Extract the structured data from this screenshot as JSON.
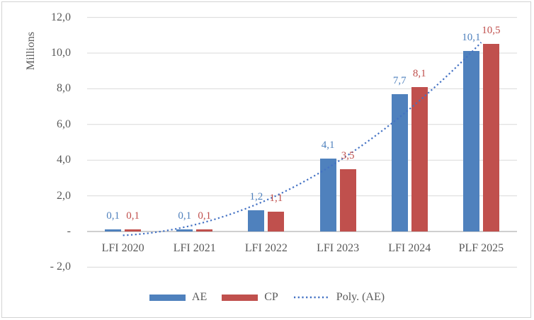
{
  "frame": {
    "background": "#FFFFFF",
    "border_color": "#D3D3D3"
  },
  "chart_data": {
    "type": "bar",
    "title": "",
    "categories": [
      "LFI 2020",
      "LFI 2021",
      "LFI 2022",
      "LFI 2023",
      "LFI 2024",
      "PLF 2025"
    ],
    "series": [
      {
        "name": "AE",
        "color": "#4F81BD",
        "values": [
          0.1,
          0.1,
          1.2,
          4.1,
          7.7,
          10.1
        ],
        "data_labels": [
          "0,1",
          "0,1",
          "1,2",
          "4,1",
          "7,7",
          "10,1"
        ]
      },
      {
        "name": "CP",
        "color": "#C0504D",
        "values": [
          0.1,
          0.1,
          1.1,
          3.5,
          8.1,
          10.5
        ],
        "data_labels": [
          "0,1",
          "0,1",
          "1,1",
          "3,5",
          "8,1",
          "10,5"
        ]
      }
    ],
    "trendline": {
      "label": "Poly. (AE)",
      "applies_to_series": "AE",
      "kind": "polynomial",
      "order": 2,
      "coefficients": {
        "a": 0.3929,
        "b": 0.1986,
        "c": -0.2143
      },
      "color": "#4472C4",
      "line_style": "dotted",
      "x_range": [
        0,
        5
      ]
    },
    "y_axis": {
      "units_label": "Millions",
      "min": -2,
      "max": 12,
      "tick_step": 2,
      "ticks": [
        {
          "value": 12,
          "label": "12,0"
        },
        {
          "value": 10,
          "label": "10,0"
        },
        {
          "value": 8,
          "label": "8,0"
        },
        {
          "value": 6,
          "label": "6,0"
        },
        {
          "value": 4,
          "label": "4,0"
        },
        {
          "value": 2,
          "label": "2,0"
        },
        {
          "value": 0,
          "label": "-"
        },
        {
          "value": -2,
          "label": "- 2,0"
        }
      ]
    },
    "legend": {
      "position": "bottom",
      "entries": [
        "AE",
        "CP",
        "Poly. (AE)"
      ]
    },
    "style": {
      "text_color": "#595959",
      "gridline_color": "#D9D9D9",
      "axis_line_color": "#BFBFBF"
    }
  }
}
